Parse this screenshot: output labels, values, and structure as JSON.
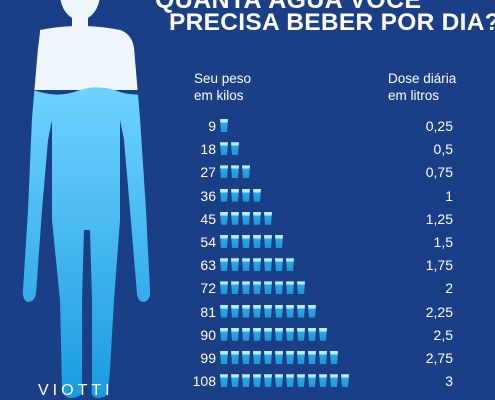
{
  "header": {
    "title_top": "QUANTA ÁGUA VOCÊ",
    "title_main": "PRECISA BEBER POR DIA?"
  },
  "columns": {
    "weight_label_line1": "Seu peso",
    "weight_label_line2": "em kilos",
    "dose_label_line1": "Dose diária",
    "dose_label_line2": "em litros"
  },
  "rows": [
    {
      "weight": "9",
      "cups": 1,
      "liters": "0,25"
    },
    {
      "weight": "18",
      "cups": 2,
      "liters": "0,5"
    },
    {
      "weight": "27",
      "cups": 3,
      "liters": "0,75"
    },
    {
      "weight": "36",
      "cups": 4,
      "liters": "1"
    },
    {
      "weight": "45",
      "cups": 5,
      "liters": "1,25"
    },
    {
      "weight": "54",
      "cups": 6,
      "liters": "1,5"
    },
    {
      "weight": "63",
      "cups": 7,
      "liters": "1,75"
    },
    {
      "weight": "72",
      "cups": 8,
      "liters": "2"
    },
    {
      "weight": "81",
      "cups": 9,
      "liters": "2,25"
    },
    {
      "weight": "90",
      "cups": 10,
      "liters": "2,5"
    },
    {
      "weight": "99",
      "cups": 11,
      "liters": "2,75"
    },
    {
      "weight": "108",
      "cups": 12,
      "liters": "3"
    }
  ],
  "logo": {
    "text": "VIOTTI"
  },
  "colors": {
    "background": "#1a3f86",
    "water": "#2aa9e8",
    "body_dry": "#eef6fb"
  },
  "icons": {
    "cup": "water-glass-icon",
    "figure": "human-body-silhouette"
  }
}
